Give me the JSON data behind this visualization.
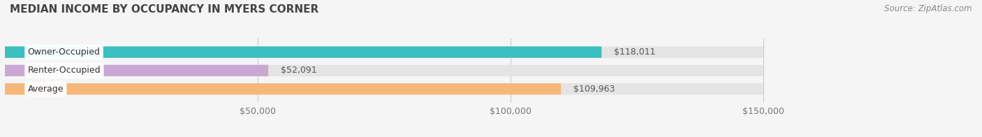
{
  "title": "MEDIAN INCOME BY OCCUPANCY IN MYERS CORNER",
  "source": "Source: ZipAtlas.com",
  "categories": [
    "Owner-Occupied",
    "Renter-Occupied",
    "Average"
  ],
  "values": [
    118011,
    52091,
    109963
  ],
  "bar_colors": [
    "#3bbfbf",
    "#c9a8d4",
    "#f5b87a"
  ],
  "bar_labels": [
    "$118,011",
    "$52,091",
    "$109,963"
  ],
  "xlim_max": 150000,
  "xlim_display_max": 168000,
  "xticks": [
    50000,
    100000,
    150000
  ],
  "xtick_labels": [
    "$50,000",
    "$100,000",
    "$150,000"
  ],
  "background_color": "#f5f5f5",
  "bar_bg_color": "#e4e4e4",
  "bar_height": 0.62,
  "figsize": [
    14.06,
    1.96
  ],
  "dpi": 100,
  "title_fontsize": 11,
  "label_fontsize": 9,
  "value_fontsize": 9
}
